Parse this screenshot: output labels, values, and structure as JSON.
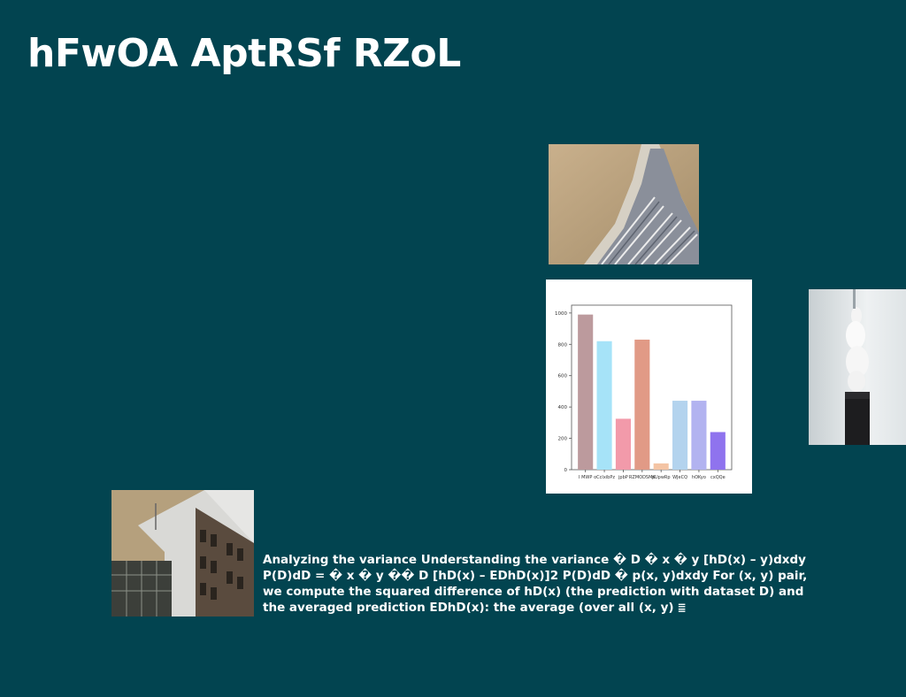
{
  "slide": {
    "title": "hFwOA AptRSf RZoL",
    "body_text": "Analyzing the variance Understanding the variance � D � x � y [hD(x) – y)dxdy P(D)dD = � x � y �� D [hD(x) – EDhD(x)]2 P(D)dD � p(x, y)dxdy For (x, y) pair, we compute the squared difference of hD(x) (the prediction with dataset D) and the averaged prediction EDhD(x): the average (over all (x, y)",
    "trailing_glyph": "≣"
  },
  "chart_data": {
    "type": "bar",
    "categories": [
      "I MWP",
      "oCclxibPz",
      "jpbP",
      "RZMODSMK",
      "pUpwRp",
      "WJeCQ",
      "hOKyo",
      "cxQQe"
    ],
    "values": [
      990,
      820,
      325,
      830,
      40,
      440,
      440,
      240
    ],
    "colors": [
      "#bc9a9d",
      "#a6e3f8",
      "#f29aaa",
      "#e19a86",
      "#f4c4a4",
      "#b3d3ee",
      "#b2b3f0",
      "#8f73ee"
    ],
    "ylim": [
      0,
      1050
    ],
    "yticks": [
      "0",
      "200",
      "400",
      "600",
      "800",
      "1000"
    ],
    "grid": false,
    "title": "",
    "xlabel": "",
    "ylabel": ""
  }
}
